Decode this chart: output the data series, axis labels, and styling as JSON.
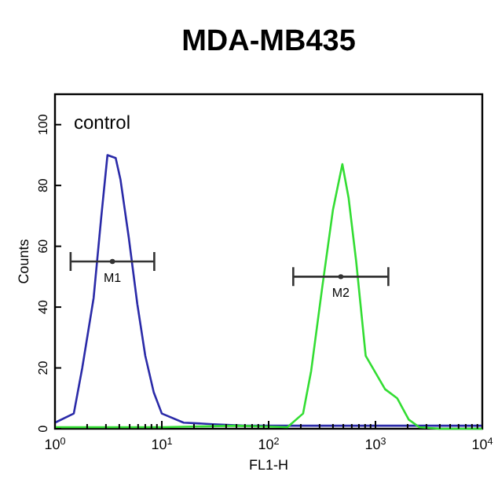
{
  "chart_data": {
    "type": "line",
    "title": "MDA-MB435",
    "xlabel": "FL1-H",
    "ylabel": "Counts",
    "log": "x",
    "xlim": [
      1,
      10000
    ],
    "ylim": [
      0,
      110
    ],
    "xticks": [
      {
        "value": 1,
        "label": "10$^{0}$"
      },
      {
        "value": 2,
        "label": null
      },
      {
        "value": 3,
        "label": null
      },
      {
        "value": 4,
        "label": null
      },
      {
        "value": 5,
        "label": null
      },
      {
        "value": 6,
        "label": null
      },
      {
        "value": 7,
        "label": null
      },
      {
        "value": 8,
        "label": null
      },
      {
        "value": 9,
        "label": null
      },
      {
        "value": 10,
        "label": "10$^{1}$"
      },
      {
        "value": 20,
        "label": null
      },
      {
        "value": 30,
        "label": null
      },
      {
        "value": 40,
        "label": null
      },
      {
        "value": 50,
        "label": null
      },
      {
        "value": 60,
        "label": null
      },
      {
        "value": 70,
        "label": null
      },
      {
        "value": 80,
        "label": null
      },
      {
        "value": 90,
        "label": null
      },
      {
        "value": 100,
        "label": "10$^{2}$"
      },
      {
        "value": 200,
        "label": null
      },
      {
        "value": 300,
        "label": null
      },
      {
        "value": 400,
        "label": null
      },
      {
        "value": 500,
        "label": null
      },
      {
        "value": 600,
        "label": null
      },
      {
        "value": 700,
        "label": null
      },
      {
        "value": 800,
        "label": null
      },
      {
        "value": 900,
        "label": null
      },
      {
        "value": 1000,
        "label": "10$^{3}$"
      },
      {
        "value": 2000,
        "label": null
      },
      {
        "value": 3000,
        "label": null
      },
      {
        "value": 4000,
        "label": null
      },
      {
        "value": 5000,
        "label": null
      },
      {
        "value": 6000,
        "label": null
      },
      {
        "value": 7000,
        "label": null
      },
      {
        "value": 8000,
        "label": null
      },
      {
        "value": 9000,
        "label": null
      },
      {
        "value": 10000,
        "label": "10$^{4}$"
      }
    ],
    "yticks": [
      0,
      20,
      40,
      60,
      80,
      100
    ],
    "series": [
      {
        "color": "#2a2aa8",
        "x": [
          1,
          1.5,
          1.8,
          2.3,
          2.7,
          3.1,
          3.7,
          4.1,
          4.9,
          5.9,
          7,
          8.4,
          10,
          16,
          30,
          60,
          100,
          300,
          1000,
          3000,
          10000
        ],
        "values": [
          2,
          5,
          20,
          43,
          69,
          90,
          89,
          82,
          63,
          41,
          24,
          12,
          5,
          2,
          1.5,
          1,
          1,
          1,
          1,
          1,
          1
        ]
      },
      {
        "color": "#33dd33",
        "x": [
          1,
          10,
          50,
          150,
          210,
          250,
          316,
          400,
          490,
          560,
          660,
          810,
          1230,
          1600,
          2050,
          2570,
          4000,
          10000
        ],
        "values": [
          0.5,
          0.5,
          1,
          0.5,
          5,
          19,
          46,
          72,
          87,
          76,
          55,
          24,
          13,
          10,
          3,
          0.5,
          0,
          0
        ]
      },
      {
        "type": "scatter",
        "color": "#333333",
        "x": [
          3.45
        ],
        "values": [
          55
        ],
        "xerrors": [
          [
            1.4,
            8.5
          ]
        ]
      },
      {
        "type": "scatter",
        "color": "#333333",
        "x": [
          474
        ],
        "values": [
          50
        ],
        "xerrors": [
          [
            170,
            1320
          ]
        ]
      }
    ],
    "annotations": [
      "control",
      {
        "text": "M1",
        "x": 3.45,
        "y": 55
      },
      {
        "text": "M2",
        "x": 474,
        "y": 50
      }
    ]
  }
}
